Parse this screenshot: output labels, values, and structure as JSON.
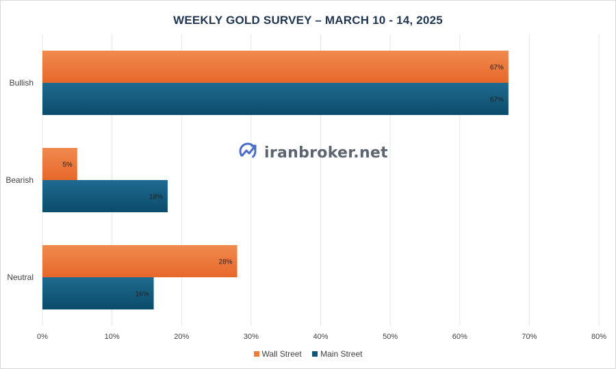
{
  "colors": {
    "wall_street": "#ef7a3a",
    "main_street": "#0f5678",
    "grid": "#dfe7ef",
    "text": "#404040",
    "title": "#1f3550"
  },
  "watermark": {
    "text": "iranbroker.net",
    "icon": "trend-chart-logo-icon"
  },
  "chart_data": {
    "type": "bar",
    "orientation": "horizontal",
    "title": "WEEKLY GOLD SURVEY – MARCH 10 - 14, 2025",
    "categories": [
      "Bullish",
      "Bearish",
      "Neutral"
    ],
    "series": [
      {
        "name": "Wall Street",
        "values": [
          67,
          5,
          28
        ],
        "labels": [
          "67%",
          "5%",
          "28%"
        ]
      },
      {
        "name": "Main Street",
        "values": [
          67,
          18,
          16
        ],
        "labels": [
          "67%",
          "18%",
          "16%"
        ]
      }
    ],
    "xlim": [
      0,
      80
    ],
    "x_ticks": [
      0,
      10,
      20,
      30,
      40,
      50,
      60,
      70,
      80
    ],
    "x_tick_labels": [
      "0%",
      "10%",
      "20%",
      "30%",
      "40%",
      "50%",
      "60%",
      "70%",
      "80%"
    ],
    "grid": true,
    "legend": "bottom"
  }
}
